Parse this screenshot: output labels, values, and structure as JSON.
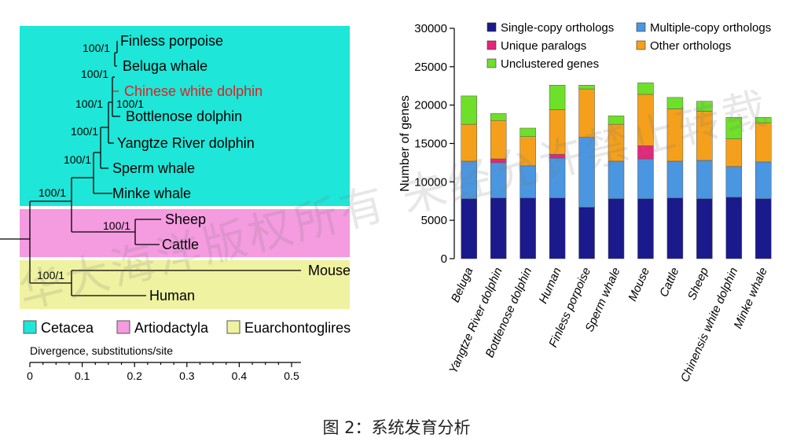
{
  "caption": "图 2：系统发育分析",
  "watermark": "华大海洋版权所有 未经允许禁止转载",
  "tree": {
    "taxa": [
      {
        "label": "Finless porpoise",
        "color": "#000000"
      },
      {
        "label": "Beluga whale",
        "color": "#000000"
      },
      {
        "label": "Chinese white dolphin",
        "color": "#e02020"
      },
      {
        "label": "Bottlenose dolphin",
        "color": "#000000"
      },
      {
        "label": "Yangtze River dolphin",
        "color": "#000000"
      },
      {
        "label": "Sperm whale",
        "color": "#000000"
      },
      {
        "label": "Minke whale",
        "color": "#000000"
      },
      {
        "label": "Sheep",
        "color": "#000000"
      },
      {
        "label": "Cattle",
        "color": "#000000"
      },
      {
        "label": "Mouse",
        "color": "#000000"
      },
      {
        "label": "Human",
        "color": "#000000"
      }
    ],
    "support_labels": [
      "100/1",
      "100/1",
      "100/1",
      "100/1",
      "100/1",
      "100/1",
      "100/1",
      "100/1",
      "100/1"
    ],
    "groups": [
      {
        "label": "Cetacea",
        "color": "#1ee6d8"
      },
      {
        "label": "Artiodactyla",
        "color": "#f59be0"
      },
      {
        "label": "Euarchontoglires",
        "color": "#eff2a0"
      }
    ],
    "axis_title": "Divergence, substitutions/site",
    "axis_ticks": [
      "0",
      "0.1",
      "0.2",
      "0.3",
      "0.4",
      "0.5"
    ]
  },
  "chart_data": {
    "type": "bar",
    "stacked": true,
    "ylabel": "Number of genes",
    "ylim": [
      0,
      30000
    ],
    "yticks": [
      "0",
      "5000",
      "10000",
      "15000",
      "20000",
      "25000",
      "30000"
    ],
    "categories": [
      "Beluga",
      "Yangtze River dolphin",
      "Bottlenose dolphin",
      "Human",
      "Finless porpoise",
      "Sperm whale",
      "Mouse",
      "Cattle",
      "Sheep",
      "Chinensis white dolphin",
      "Minke whale"
    ],
    "series": [
      {
        "name": "Single-copy orthologs",
        "color": "#1a1a8c",
        "values": [
          7800,
          7900,
          7900,
          7900,
          6700,
          7800,
          7800,
          7900,
          7800,
          8000,
          7800
        ]
      },
      {
        "name": "Multiple-copy orthologs",
        "color": "#4b96e0",
        "values": [
          4900,
          4600,
          4200,
          5200,
          9100,
          4900,
          5200,
          4800,
          5000,
          4000,
          4800
        ]
      },
      {
        "name": "Unique paralogs",
        "color": "#e8247a",
        "values": [
          0,
          500,
          0,
          500,
          0,
          0,
          1700,
          0,
          0,
          0,
          0
        ]
      },
      {
        "name": "Other orthologs",
        "color": "#f5a01c",
        "values": [
          4800,
          5000,
          3800,
          5800,
          6300,
          4800,
          6700,
          6800,
          6400,
          3600,
          5100
        ]
      },
      {
        "name": "Unclustered genes",
        "color": "#6ee02a",
        "values": [
          3700,
          900,
          1100,
          3200,
          500,
          1100,
          1500,
          1500,
          1300,
          2800,
          700
        ]
      }
    ],
    "legend": {
      "placement": "top"
    }
  }
}
